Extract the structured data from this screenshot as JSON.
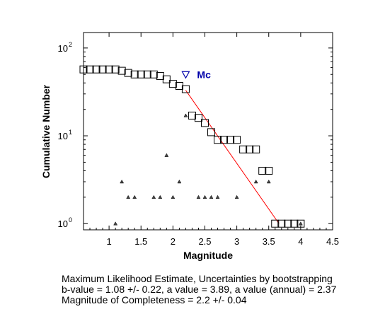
{
  "chart_data": {
    "type": "scatter",
    "xlabel": "Magnitude",
    "ylabel": "Cumulative Number",
    "xlim": [
      0.6,
      4.5
    ],
    "ylim": [
      0.85,
      150
    ],
    "y_scale": "log",
    "x_ticks": [
      1,
      1.5,
      2,
      2.5,
      3,
      3.5,
      4,
      4.5
    ],
    "x_tick_labels": [
      "1",
      "1.5",
      "2",
      "2.5",
      "3",
      "3.5",
      "4",
      "4.5"
    ],
    "y_ticks": [
      1,
      10,
      100
    ],
    "y_tick_labels": [
      "10",
      "10",
      "10"
    ],
    "y_tick_exponents": [
      "0",
      "1",
      "2"
    ],
    "grid": false,
    "series": [
      {
        "marker": "square",
        "color": "#000000",
        "x": [
          0.6,
          0.7,
          0.8,
          0.9,
          1.0,
          1.1,
          1.2,
          1.3,
          1.4,
          1.5,
          1.6,
          1.7,
          1.8,
          1.9,
          2.0,
          2.1,
          2.2,
          2.3,
          2.4,
          2.5,
          2.6,
          2.7,
          2.8,
          2.9,
          3.0,
          3.1,
          3.2,
          3.3,
          3.4,
          3.5,
          3.6,
          3.7,
          3.8,
          3.9,
          4.0
        ],
        "y": [
          57,
          57,
          57,
          57,
          57,
          57,
          55,
          52,
          50,
          50,
          50,
          50,
          48,
          44,
          39,
          37,
          34,
          17,
          16,
          14,
          11,
          9,
          9,
          9,
          9,
          7,
          7,
          7,
          4,
          4,
          1,
          1,
          1,
          1,
          1
        ]
      },
      {
        "marker": "triangle-up",
        "color": "#000000",
        "x": [
          1.1,
          1.2,
          1.3,
          1.4,
          1.7,
          1.8,
          1.9,
          2.0,
          2.1,
          2.2,
          2.4,
          2.5,
          2.6,
          2.7,
          3.0,
          3.3,
          3.5,
          4.0
        ],
        "y": [
          1,
          3,
          2,
          2,
          2,
          2,
          6,
          2,
          3,
          17,
          2,
          2,
          2,
          2,
          2,
          3,
          3,
          1
        ]
      },
      {
        "marker": "line",
        "color": "#ff0000",
        "x": [
          2.2,
          3.66
        ],
        "y": [
          33,
          1
        ]
      }
    ],
    "annotations": [
      {
        "text": "Mc",
        "x": 2.2,
        "y": 50,
        "marker": "triangle-down",
        "color": "#0000aa"
      }
    ]
  },
  "caption": {
    "line1": "Maximum Likelihood Estimate, Uncertainties by bootstrapping",
    "line2": "b-value = 1.08 +/- 0.22,  a value = 3.89,  a value (annual) = 2.37",
    "line3": "Magnitude of Completeness = 2.2 +/- 0.04"
  }
}
